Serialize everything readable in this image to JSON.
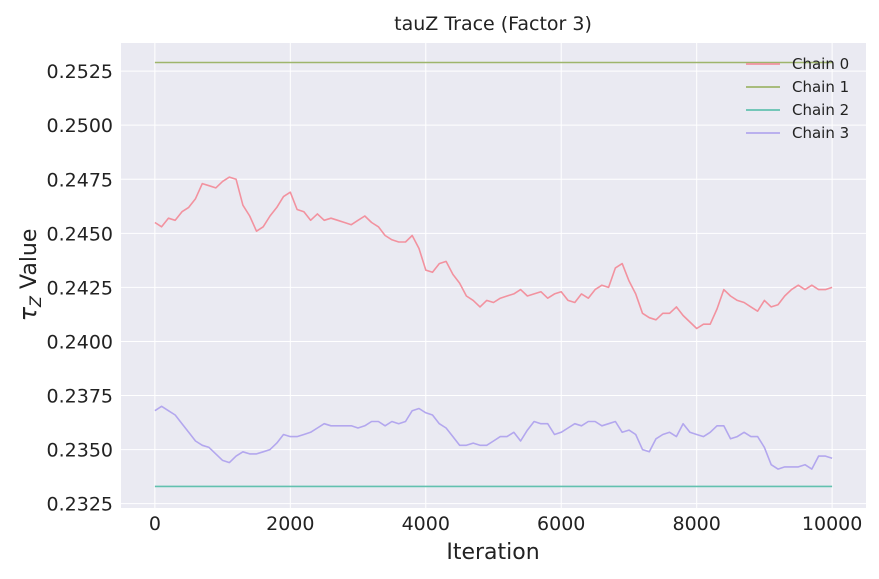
{
  "chart_data": {
    "type": "line",
    "title": "tauZ Trace (Factor 3)",
    "xlabel": "Iteration",
    "ylabel_symbol": "τ",
    "ylabel_subscript": "Z",
    "ylabel_rest": " Value",
    "xlim": [
      -500,
      10500
    ],
    "ylim": [
      0.2323,
      0.2538
    ],
    "xticks": [
      0,
      2000,
      4000,
      6000,
      8000,
      10000
    ],
    "xtick_labels": [
      "0",
      "2000",
      "4000",
      "6000",
      "8000",
      "10000"
    ],
    "yticks": [
      0.2325,
      0.235,
      0.2375,
      0.24,
      0.2425,
      0.245,
      0.2475,
      0.25,
      0.2525
    ],
    "ytick_labels": [
      "0.2325",
      "0.2350",
      "0.2375",
      "0.2400",
      "0.2425",
      "0.2450",
      "0.2475",
      "0.2500",
      "0.2525"
    ],
    "grid": true,
    "legend_position": "top-right",
    "series": [
      {
        "name": "Chain 0",
        "color": "#f2929f",
        "x": [
          0,
          100,
          200,
          300,
          400,
          500,
          600,
          700,
          800,
          900,
          1000,
          1100,
          1200,
          1300,
          1400,
          1500,
          1600,
          1700,
          1800,
          1900,
          2000,
          2100,
          2200,
          2300,
          2400,
          2500,
          2600,
          2700,
          2800,
          2900,
          3000,
          3100,
          3200,
          3300,
          3400,
          3500,
          3600,
          3700,
          3800,
          3900,
          4000,
          4100,
          4200,
          4300,
          4400,
          4500,
          4600,
          4700,
          4800,
          4900,
          5000,
          5100,
          5200,
          5300,
          5400,
          5500,
          5600,
          5700,
          5800,
          5900,
          6000,
          6100,
          6200,
          6300,
          6400,
          6500,
          6600,
          6700,
          6800,
          6900,
          7000,
          7100,
          7200,
          7300,
          7400,
          7500,
          7600,
          7700,
          7800,
          7900,
          8000,
          8100,
          8200,
          8300,
          8400,
          8500,
          8600,
          8700,
          8800,
          8900,
          9000,
          9100,
          9200,
          9300,
          9400,
          9500,
          9600,
          9700,
          9800,
          9900,
          10000
        ],
        "y": [
          0.2455,
          0.2453,
          0.2457,
          0.2456,
          0.246,
          0.2462,
          0.2466,
          0.2473,
          0.2472,
          0.2471,
          0.2474,
          0.2476,
          0.2475,
          0.2463,
          0.2458,
          0.2451,
          0.2453,
          0.2458,
          0.2462,
          0.2467,
          0.2469,
          0.2461,
          0.246,
          0.2456,
          0.2459,
          0.2456,
          0.2457,
          0.2456,
          0.2455,
          0.2454,
          0.2456,
          0.2458,
          0.2455,
          0.2453,
          0.2449,
          0.2447,
          0.2446,
          0.2446,
          0.2449,
          0.2443,
          0.2433,
          0.2432,
          0.2436,
          0.2437,
          0.2431,
          0.2427,
          0.2421,
          0.2419,
          0.2416,
          0.2419,
          0.2418,
          0.242,
          0.2421,
          0.2422,
          0.2424,
          0.2421,
          0.2422,
          0.2423,
          0.242,
          0.2422,
          0.2423,
          0.2419,
          0.2418,
          0.2422,
          0.242,
          0.2424,
          0.2426,
          0.2425,
          0.2434,
          0.2436,
          0.2428,
          0.2422,
          0.2413,
          0.2411,
          0.241,
          0.2413,
          0.2413,
          0.2416,
          0.2412,
          0.2409,
          0.2406,
          0.2408,
          0.2408,
          0.2415,
          0.2424,
          0.2421,
          0.2419,
          0.2418,
          0.2416,
          0.2414,
          0.2419,
          0.2416,
          0.2417,
          0.2421,
          0.2424,
          0.2426,
          0.2424,
          0.2426,
          0.2424,
          0.2424,
          0.2425
        ]
      },
      {
        "name": "Chain 1",
        "color": "#9eb56c",
        "x": [
          0,
          10000
        ],
        "y": [
          0.2529,
          0.2529
        ]
      },
      {
        "name": "Chain 2",
        "color": "#62c1af",
        "x": [
          0,
          10000
        ],
        "y": [
          0.2333,
          0.2333
        ]
      },
      {
        "name": "Chain 3",
        "color": "#b3a7ee",
        "x": [
          0,
          100,
          200,
          300,
          400,
          500,
          600,
          700,
          800,
          900,
          1000,
          1100,
          1200,
          1300,
          1400,
          1500,
          1600,
          1700,
          1800,
          1900,
          2000,
          2100,
          2200,
          2300,
          2400,
          2500,
          2600,
          2700,
          2800,
          2900,
          3000,
          3100,
          3200,
          3300,
          3400,
          3500,
          3600,
          3700,
          3800,
          3900,
          4000,
          4100,
          4200,
          4300,
          4400,
          4500,
          4600,
          4700,
          4800,
          4900,
          5000,
          5100,
          5200,
          5300,
          5400,
          5500,
          5600,
          5700,
          5800,
          5900,
          6000,
          6100,
          6200,
          6300,
          6400,
          6500,
          6600,
          6700,
          6800,
          6900,
          7000,
          7100,
          7200,
          7300,
          7400,
          7500,
          7600,
          7700,
          7800,
          7900,
          8000,
          8100,
          8200,
          8300,
          8400,
          8500,
          8600,
          8700,
          8800,
          8900,
          9000,
          9100,
          9200,
          9300,
          9400,
          9500,
          9600,
          9700,
          9800,
          9900,
          10000
        ],
        "y": [
          0.2368,
          0.237,
          0.2368,
          0.2366,
          0.2362,
          0.2358,
          0.2354,
          0.2352,
          0.2351,
          0.2348,
          0.2345,
          0.2344,
          0.2347,
          0.2349,
          0.2348,
          0.2348,
          0.2349,
          0.235,
          0.2353,
          0.2357,
          0.2356,
          0.2356,
          0.2357,
          0.2358,
          0.236,
          0.2362,
          0.2361,
          0.2361,
          0.2361,
          0.2361,
          0.236,
          0.2361,
          0.2363,
          0.2363,
          0.2361,
          0.2363,
          0.2362,
          0.2363,
          0.2368,
          0.2369,
          0.2367,
          0.2366,
          0.2362,
          0.236,
          0.2356,
          0.2352,
          0.2352,
          0.2353,
          0.2352,
          0.2352,
          0.2354,
          0.2356,
          0.2356,
          0.2358,
          0.2354,
          0.2359,
          0.2363,
          0.2362,
          0.2362,
          0.2357,
          0.2358,
          0.236,
          0.2362,
          0.2361,
          0.2363,
          0.2363,
          0.2361,
          0.2362,
          0.2363,
          0.2358,
          0.2359,
          0.2357,
          0.235,
          0.2349,
          0.2355,
          0.2357,
          0.2358,
          0.2356,
          0.2362,
          0.2358,
          0.2357,
          0.2356,
          0.2358,
          0.2361,
          0.2361,
          0.2355,
          0.2356,
          0.2358,
          0.2356,
          0.2356,
          0.2351,
          0.2343,
          0.2341,
          0.2342,
          0.2342,
          0.2342,
          0.2343,
          0.2341,
          0.2347,
          0.2347,
          0.2346
        ]
      }
    ]
  }
}
